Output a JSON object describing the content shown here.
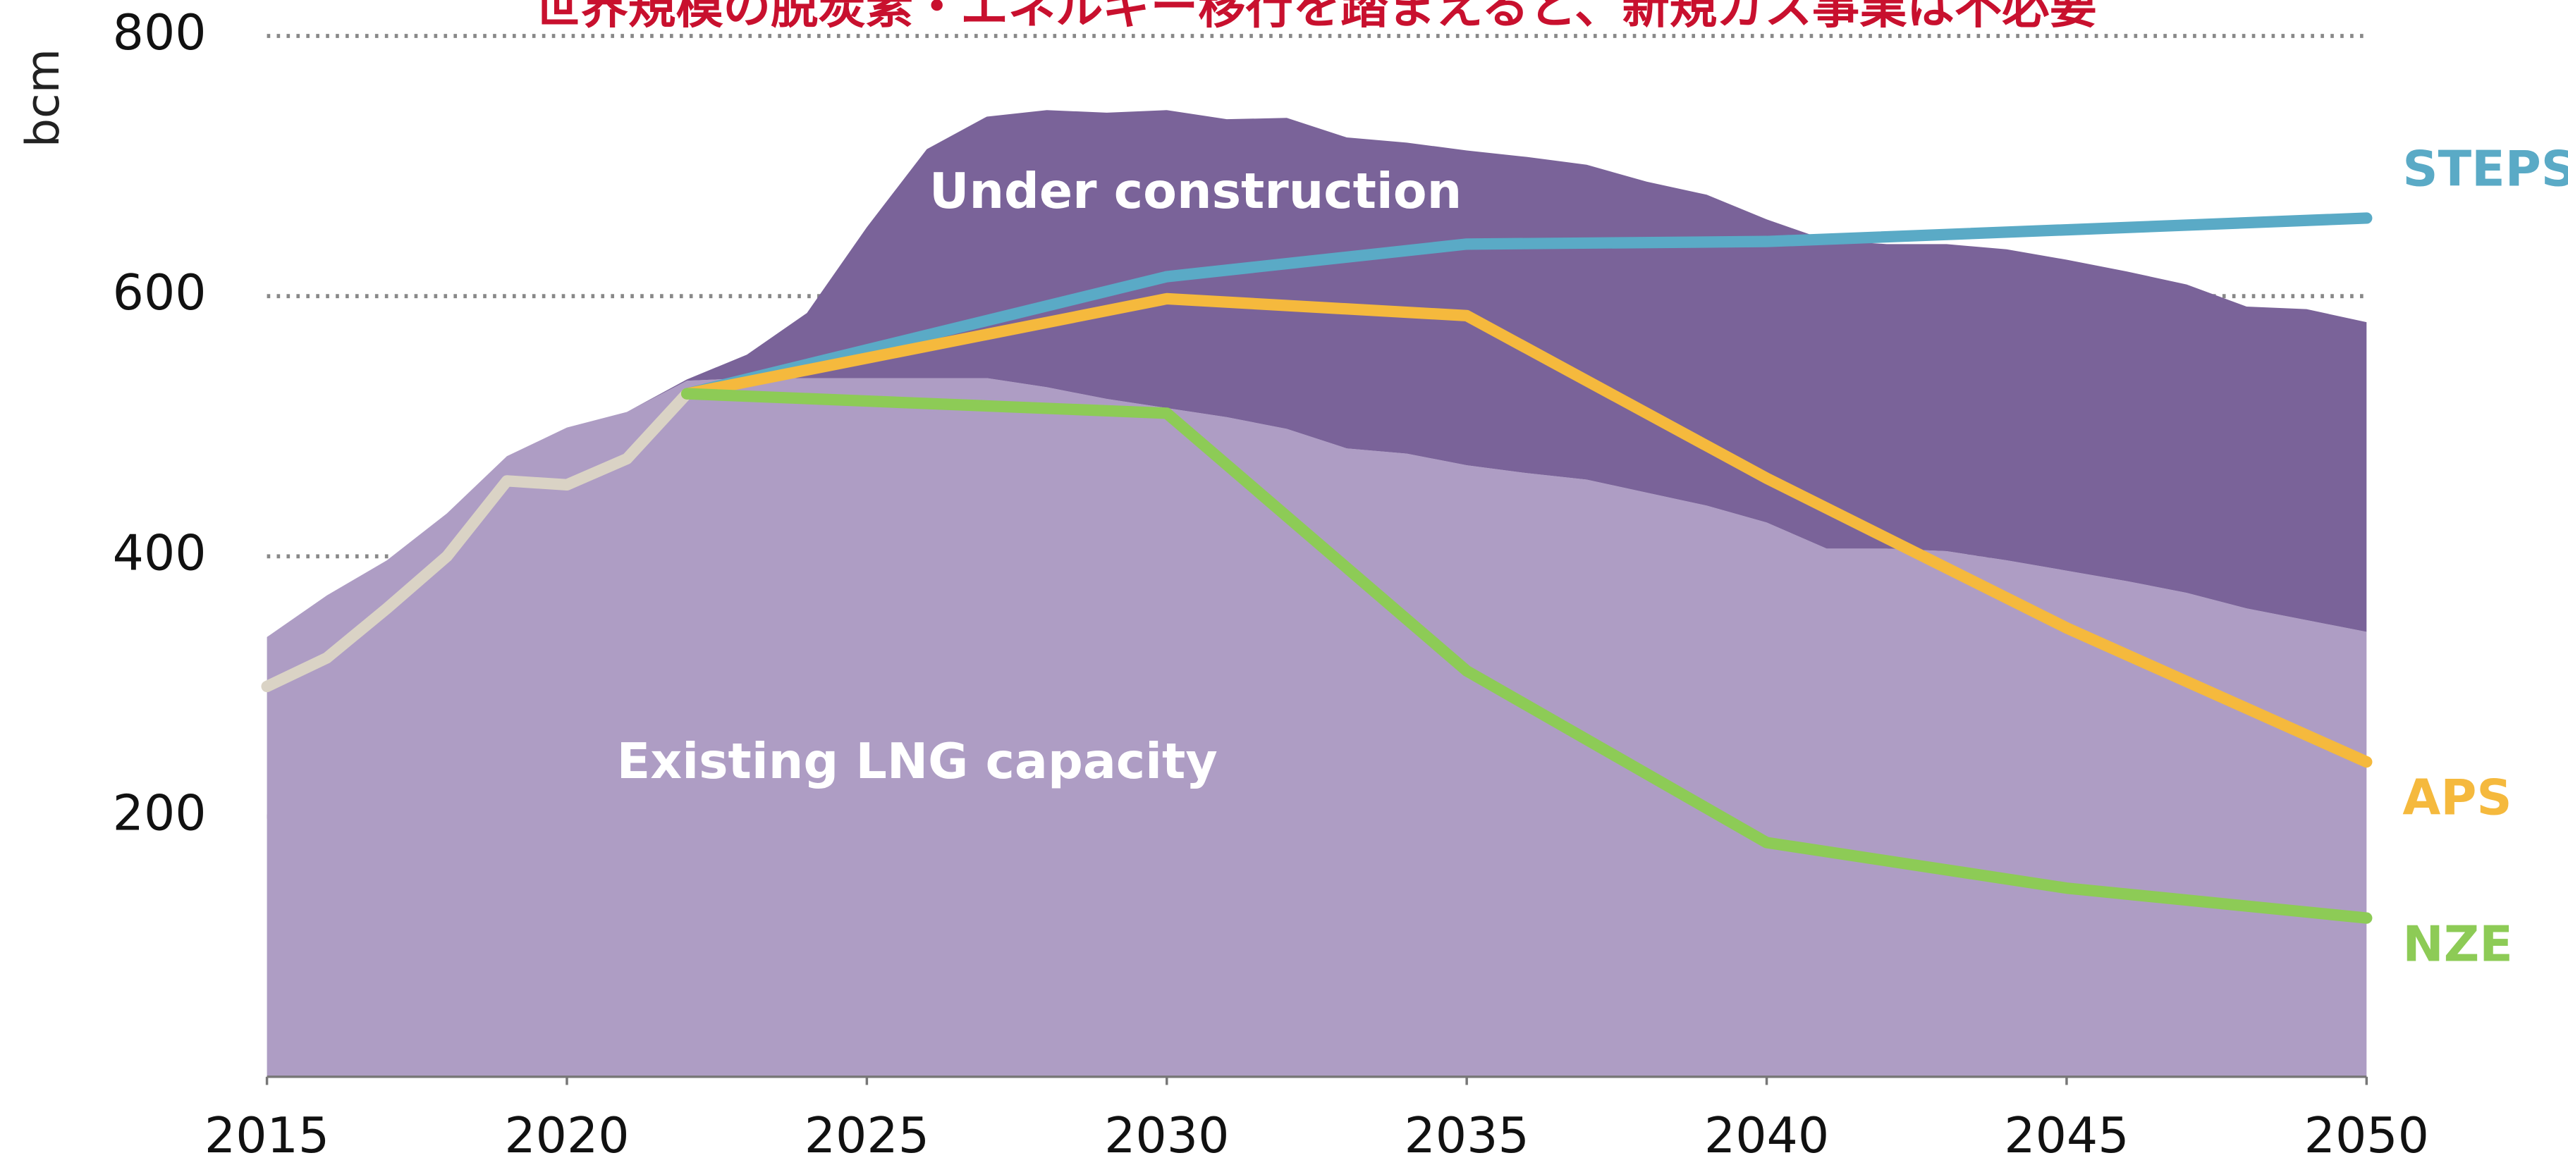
{
  "chart_data": {
    "type": "area",
    "title": "世界規模の脱炭素・エネルギー移行を踏まえると、新規ガス事業は不必要",
    "ylabel": "bcm",
    "x": [
      2015,
      2016,
      2017,
      2018,
      2019,
      2020,
      2021,
      2022,
      2023,
      2024,
      2025,
      2026,
      2027,
      2028,
      2029,
      2030,
      2031,
      2032,
      2033,
      2034,
      2035,
      2036,
      2037,
      2038,
      2039,
      2040,
      2041,
      2042,
      2043,
      2044,
      2045,
      2046,
      2047,
      2048,
      2049,
      2050
    ],
    "series": [
      {
        "name": "Existing LNG capacity",
        "color": "#ae9dc4",
        "stacked": true,
        "values": [
          338,
          370,
          397,
          433,
          477,
          499,
          511,
          535,
          537,
          537,
          537,
          537,
          537,
          530,
          521,
          514,
          507,
          498,
          483,
          479,
          470,
          464,
          459,
          449,
          439,
          426,
          406,
          406,
          404,
          397,
          389,
          381,
          372,
          360,
          351,
          342
        ]
      },
      {
        "name": "Under construction",
        "color": "#7a6399",
        "stacked": true,
        "values": [
          0,
          0,
          0,
          0,
          0,
          0,
          0,
          1,
          18,
          50,
          116,
          176,
          201,
          213,
          220,
          229,
          229,
          239,
          239,
          239,
          242,
          243,
          242,
          239,
          239,
          233,
          237,
          234,
          236,
          239,
          239,
          238,
          237,
          232,
          239,
          238
        ]
      },
      {
        "color": "#dad3c5",
        "line": true,
        "x": [
          2015,
          2016,
          2017,
          2018,
          2019,
          2020,
          2021,
          2022
        ],
        "values": [
          300,
          322,
          360,
          400,
          458,
          455,
          475,
          525
        ]
      },
      {
        "name": "STEPS",
        "color": "#5aaac6",
        "line": true,
        "x": [
          2022,
          2030,
          2035,
          2040,
          2050
        ],
        "values": [
          525,
          615,
          640,
          642,
          660
        ]
      },
      {
        "name": "APS",
        "color": "#f5b93d",
        "line": true,
        "x": [
          2022,
          2030,
          2035,
          2040,
          2045,
          2050
        ],
        "values": [
          525,
          598,
          585,
          460,
          345,
          242
        ]
      },
      {
        "name": "NZE",
        "color": "#8dcb56",
        "line": true,
        "x": [
          2022,
          2030,
          2035,
          2040,
          2045,
          2050
        ],
        "values": [
          525,
          510,
          312,
          180,
          145,
          122
        ]
      }
    ],
    "xlim": [
      2015,
      2050
    ],
    "xticks": [
      2015,
      2020,
      2025,
      2030,
      2035,
      2040,
      2045,
      2050
    ],
    "ylim": [
      0,
      800
    ],
    "yticks": [
      200,
      400,
      600,
      800
    ],
    "grid": true
  }
}
